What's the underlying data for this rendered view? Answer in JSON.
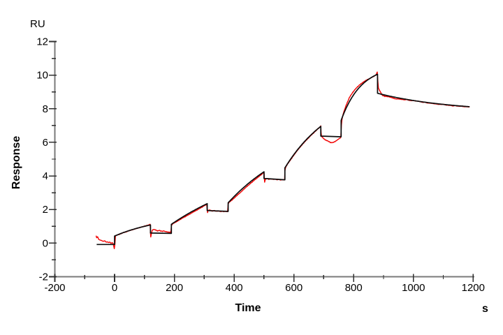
{
  "page": {
    "background": "#ffffff"
  },
  "chart_data": {
    "type": "line",
    "title": "",
    "description": "SPR single-cycle kinetics sensorgram: red experimental trace with black kinetic fit, five sequential analyte injections",
    "y_unit_label": "RU",
    "ylabel": "Response",
    "xlabel": "Time",
    "x_unit_label": "s",
    "xlim": [
      -200,
      1200
    ],
    "ylim": [
      -2,
      12
    ],
    "x_major_ticks": [
      -200,
      0,
      200,
      400,
      600,
      800,
      1000,
      1200
    ],
    "x_minor_step": 100,
    "y_major_ticks": [
      -2,
      0,
      2,
      4,
      6,
      8,
      10,
      12
    ],
    "y_minor_step": 1,
    "grid": false,
    "legend_position": "none",
    "colors": {
      "experimental": "#f20000",
      "fit": "#0d0d0d",
      "axis": "#7a7a7a",
      "tick": "#303030",
      "text": "#000000"
    },
    "noise": {
      "amplitude": 0.028
    },
    "injection_times_s": [
      0,
      190,
      380,
      570,
      758
    ],
    "peak_responses_RU": [
      1.08,
      2.35,
      4.25,
      6.95,
      10.05
    ],
    "series": [
      {
        "name": "kinetic-fit",
        "color_key": "fit",
        "segments": [
          {
            "from": [
              -60,
              -0.08
            ],
            "to": [
              0,
              -0.08
            ],
            "type": "line"
          },
          {
            "to": [
              0,
              0.42
            ],
            "type": "jump"
          },
          {
            "to": [
              120,
              1.08
            ],
            "type": "exp",
            "k": 0.006
          },
          {
            "to": [
              120,
              0.6
            ],
            "type": "jump"
          },
          {
            "to": [
              190,
              0.58
            ],
            "type": "line"
          },
          {
            "to": [
              190,
              1.12
            ],
            "type": "jump"
          },
          {
            "to": [
              310,
              2.35
            ],
            "type": "exp",
            "k": 0.003
          },
          {
            "to": [
              310,
              1.94
            ],
            "type": "jump"
          },
          {
            "to": [
              380,
              1.89
            ],
            "type": "line"
          },
          {
            "to": [
              380,
              2.4
            ],
            "type": "jump"
          },
          {
            "to": [
              500,
              4.25
            ],
            "type": "exp",
            "k": 0.004
          },
          {
            "to": [
              500,
              3.85
            ],
            "type": "jump"
          },
          {
            "to": [
              570,
              3.77
            ],
            "type": "line"
          },
          {
            "to": [
              570,
              4.48
            ],
            "type": "jump"
          },
          {
            "to": [
              690,
              6.95
            ],
            "type": "exp",
            "k": 0.006
          },
          {
            "to": [
              690,
              6.37
            ],
            "type": "jump"
          },
          {
            "to": [
              758,
              6.33
            ],
            "type": "line"
          },
          {
            "to": [
              758,
              7.3
            ],
            "type": "jump"
          },
          {
            "to": [
              880,
              10.05
            ],
            "type": "exp",
            "k": 0.015
          },
          {
            "to": [
              880,
              8.92
            ],
            "type": "jump"
          },
          {
            "to": [
              1188,
              8.12
            ],
            "type": "exp",
            "k": 0.004
          }
        ]
      },
      {
        "name": "experimental",
        "color_key": "experimental",
        "points": [
          [
            -62,
            0.45
          ],
          [
            -60,
            0.3
          ],
          [
            -57,
            0.38
          ],
          [
            -53,
            0.22
          ],
          [
            -49,
            0.16
          ],
          [
            -45,
            0.18
          ],
          [
            -41,
            0.12
          ],
          [
            -37,
            0.1
          ],
          [
            -33,
            0.12
          ],
          [
            -28,
            0.06
          ],
          [
            -24,
            0.08
          ],
          [
            -20,
            0.03
          ],
          [
            -16,
            0.05
          ],
          [
            -12,
            0.0
          ],
          [
            -8,
            0.02
          ],
          [
            -5,
            -0.04
          ],
          [
            -3,
            -0.18
          ],
          [
            -1,
            -0.32
          ],
          [
            1,
            -0.05
          ],
          [
            3,
            0.42
          ],
          [
            6,
            0.46
          ],
          [
            14,
            0.5
          ],
          [
            22,
            0.56
          ],
          [
            30,
            0.62
          ],
          [
            38,
            0.66
          ],
          [
            46,
            0.72
          ],
          [
            54,
            0.77
          ],
          [
            62,
            0.81
          ],
          [
            70,
            0.86
          ],
          [
            78,
            0.9
          ],
          [
            86,
            0.95
          ],
          [
            94,
            0.99
          ],
          [
            102,
            1.03
          ],
          [
            110,
            1.07
          ],
          [
            117,
            1.1
          ],
          [
            119,
            1.12
          ],
          [
            120,
            0.6
          ],
          [
            121,
            0.38
          ],
          [
            123,
            0.55
          ],
          [
            126,
            0.78
          ],
          [
            131,
            0.82
          ],
          [
            137,
            0.78
          ],
          [
            143,
            0.74
          ],
          [
            149,
            0.76
          ],
          [
            155,
            0.72
          ],
          [
            161,
            0.7
          ],
          [
            167,
            0.72
          ],
          [
            173,
            0.68
          ],
          [
            179,
            0.66
          ],
          [
            185,
            0.64
          ],
          [
            188,
            0.62
          ],
          [
            190,
            1.0
          ],
          [
            192,
            1.12
          ],
          [
            197,
            1.18
          ],
          [
            205,
            1.25
          ],
          [
            213,
            1.33
          ],
          [
            221,
            1.42
          ],
          [
            229,
            1.5
          ],
          [
            237,
            1.57
          ],
          [
            245,
            1.65
          ],
          [
            253,
            1.73
          ],
          [
            261,
            1.82
          ],
          [
            269,
            1.9
          ],
          [
            277,
            1.98
          ],
          [
            285,
            2.07
          ],
          [
            293,
            2.15
          ],
          [
            301,
            2.24
          ],
          [
            308,
            2.32
          ],
          [
            310,
            1.98
          ],
          [
            311,
            1.82
          ],
          [
            313,
            1.95
          ],
          [
            318,
            1.96
          ],
          [
            325,
            1.92
          ],
          [
            332,
            1.94
          ],
          [
            339,
            1.9
          ],
          [
            346,
            1.92
          ],
          [
            353,
            1.88
          ],
          [
            360,
            1.9
          ],
          [
            367,
            1.87
          ],
          [
            374,
            1.89
          ],
          [
            378,
            1.87
          ],
          [
            380,
            2.3
          ],
          [
            382,
            2.42
          ],
          [
            388,
            2.5
          ],
          [
            396,
            2.62
          ],
          [
            404,
            2.75
          ],
          [
            412,
            2.88
          ],
          [
            420,
            3.0
          ],
          [
            428,
            3.13
          ],
          [
            436,
            3.26
          ],
          [
            444,
            3.38
          ],
          [
            452,
            3.5
          ],
          [
            460,
            3.62
          ],
          [
            468,
            3.74
          ],
          [
            476,
            3.85
          ],
          [
            484,
            3.97
          ],
          [
            492,
            4.08
          ],
          [
            498,
            4.18
          ],
          [
            500,
            4.22
          ],
          [
            501,
            3.9
          ],
          [
            502,
            3.62
          ],
          [
            504,
            3.78
          ],
          [
            509,
            3.84
          ],
          [
            516,
            3.8
          ],
          [
            523,
            3.83
          ],
          [
            530,
            3.79
          ],
          [
            537,
            3.81
          ],
          [
            544,
            3.77
          ],
          [
            551,
            3.79
          ],
          [
            558,
            3.76
          ],
          [
            565,
            3.77
          ],
          [
            569,
            3.75
          ],
          [
            570,
            4.3
          ],
          [
            572,
            4.5
          ],
          [
            577,
            4.65
          ],
          [
            585,
            4.85
          ],
          [
            593,
            5.05
          ],
          [
            601,
            5.25
          ],
          [
            609,
            5.45
          ],
          [
            617,
            5.63
          ],
          [
            625,
            5.8
          ],
          [
            633,
            5.97
          ],
          [
            641,
            6.12
          ],
          [
            649,
            6.27
          ],
          [
            657,
            6.42
          ],
          [
            665,
            6.55
          ],
          [
            673,
            6.68
          ],
          [
            681,
            6.82
          ],
          [
            688,
            6.92
          ],
          [
            690,
            6.98
          ],
          [
            691,
            6.55
          ],
          [
            693,
            6.35
          ],
          [
            696,
            6.28
          ],
          [
            700,
            6.22
          ],
          [
            705,
            6.15
          ],
          [
            710,
            6.1
          ],
          [
            716,
            6.05
          ],
          [
            722,
            6.0
          ],
          [
            728,
            5.98
          ],
          [
            733,
            6.02
          ],
          [
            738,
            6.06
          ],
          [
            743,
            6.1
          ],
          [
            748,
            6.16
          ],
          [
            752,
            6.22
          ],
          [
            755,
            6.27
          ],
          [
            757,
            6.3
          ],
          [
            759,
            7.0
          ],
          [
            761,
            7.35
          ],
          [
            764,
            7.6
          ],
          [
            768,
            7.85
          ],
          [
            772,
            8.05
          ],
          [
            777,
            8.3
          ],
          [
            783,
            8.55
          ],
          [
            790,
            8.8
          ],
          [
            798,
            9.0
          ],
          [
            806,
            9.18
          ],
          [
            814,
            9.32
          ],
          [
            822,
            9.45
          ],
          [
            830,
            9.55
          ],
          [
            838,
            9.65
          ],
          [
            846,
            9.73
          ],
          [
            854,
            9.8
          ],
          [
            862,
            9.88
          ],
          [
            870,
            9.95
          ],
          [
            876,
            10.05
          ],
          [
            879,
            10.18
          ],
          [
            881,
            9.6
          ],
          [
            883,
            9.25
          ],
          [
            886,
            9.1
          ],
          [
            890,
            8.98
          ],
          [
            896,
            8.8
          ],
          [
            904,
            8.74
          ],
          [
            912,
            8.72
          ],
          [
            920,
            8.7
          ],
          [
            930,
            8.63
          ],
          [
            940,
            8.6
          ],
          [
            950,
            8.58
          ],
          [
            962,
            8.55
          ],
          [
            974,
            8.54
          ],
          [
            986,
            8.5
          ],
          [
            998,
            8.48
          ],
          [
            1010,
            8.46
          ],
          [
            1022,
            8.42
          ],
          [
            1034,
            8.38
          ],
          [
            1046,
            8.35
          ],
          [
            1058,
            8.32
          ],
          [
            1070,
            8.3
          ],
          [
            1082,
            8.26
          ],
          [
            1094,
            8.26
          ],
          [
            1106,
            8.24
          ],
          [
            1118,
            8.2
          ],
          [
            1130,
            8.18
          ],
          [
            1142,
            8.17
          ],
          [
            1154,
            8.15
          ],
          [
            1166,
            8.14
          ],
          [
            1178,
            8.12
          ],
          [
            1188,
            8.1
          ]
        ]
      }
    ]
  }
}
